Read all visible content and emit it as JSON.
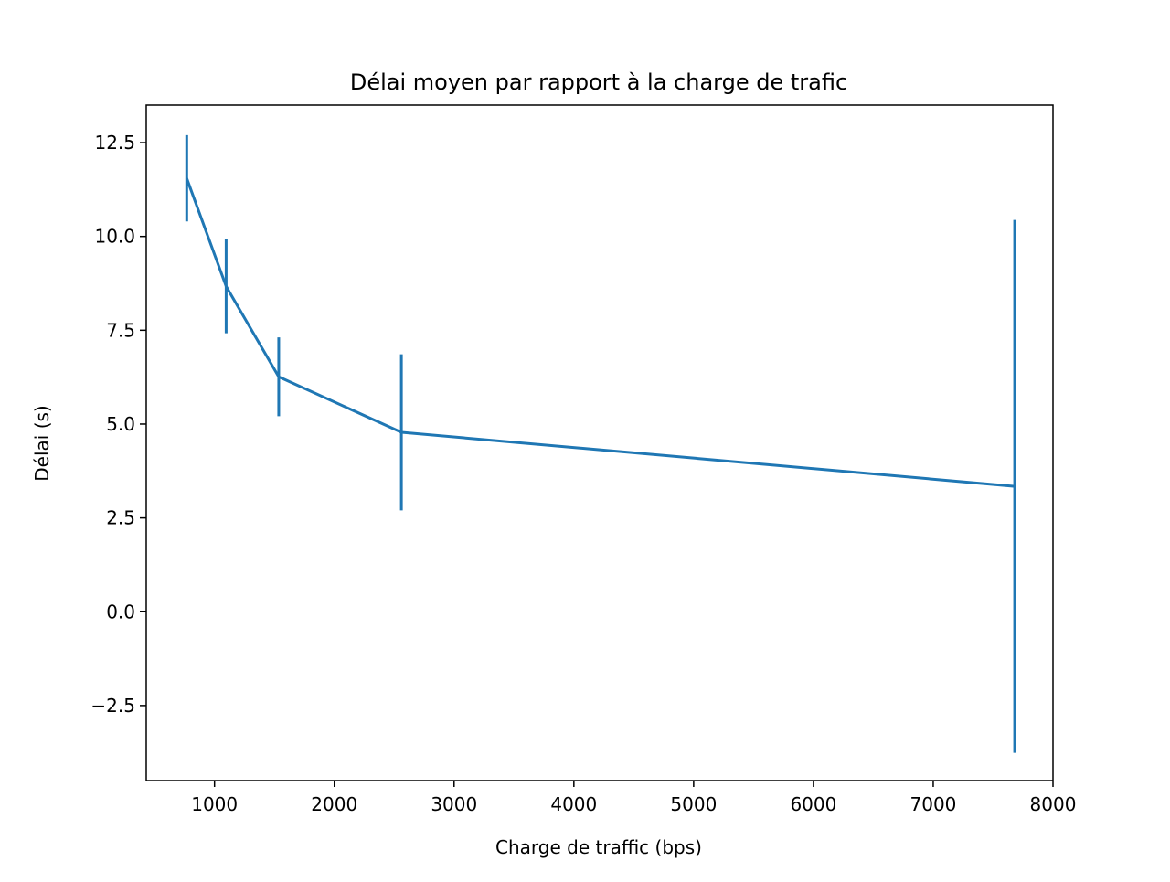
{
  "chart_data": {
    "type": "line",
    "title": "Délai moyen par rapport à la charge de trafic",
    "xlabel": "Charge de traffic (bps)",
    "ylabel": "Délai (s)",
    "xlim": [
      430,
      8000
    ],
    "ylim": [
      -4.5,
      13.5
    ],
    "x_ticks": [
      1000,
      2000,
      3000,
      4000,
      5000,
      6000,
      7000,
      8000
    ],
    "x_tick_labels": [
      "1000",
      "2000",
      "3000",
      "4000",
      "5000",
      "6000",
      "7000",
      "8000"
    ],
    "y_ticks": [
      -2.5,
      0,
      2.5,
      5,
      7.5,
      10,
      12.5
    ],
    "y_tick_labels": [
      "−2.5",
      "0.0",
      "2.5",
      "5.0",
      "7.5",
      "10.0",
      "12.5"
    ],
    "grid": false,
    "series": [
      {
        "color": "#1f77b4",
        "points": [
          {
            "x": 768,
            "y": 11.55,
            "yerr": 1.15
          },
          {
            "x": 1097,
            "y": 8.67,
            "yerr": 1.25
          },
          {
            "x": 1536,
            "y": 6.26,
            "yerr": 1.05
          },
          {
            "x": 2560,
            "y": 4.78,
            "yerr": 2.08
          },
          {
            "x": 7680,
            "y": 3.34,
            "yerr": 7.1
          }
        ]
      }
    ]
  }
}
